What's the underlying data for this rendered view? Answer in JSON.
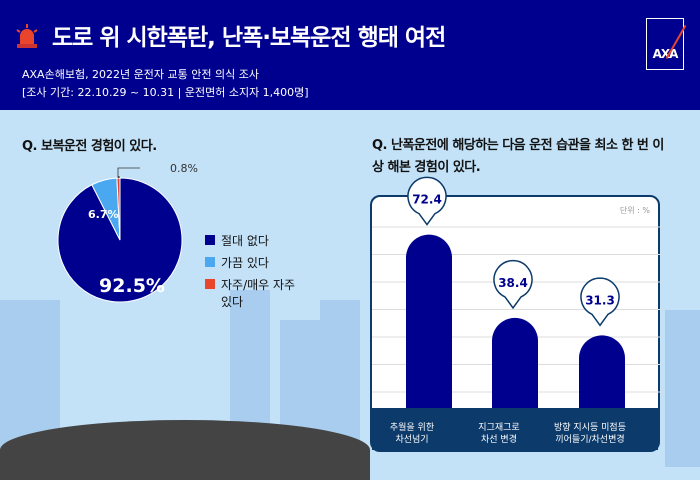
{
  "header": {
    "title": "도로 위 시한폭탄, 난폭·보복운전 행태 여전",
    "subtitle1": "AXA손해보험, 2022년 운전자 교통 안전 의식 조사",
    "subtitle2": "[조사 기간: 22.10.29 ~ 10.31 | 운전면허 소지자 1,400명]",
    "logo": "AXA"
  },
  "colors": {
    "navy": "#00008f",
    "light_blue": "#4aa8f0",
    "red": "#e8452c"
  },
  "chart_data": [
    {
      "type": "pie",
      "title": "Q. 보복운전 경험이 있다.",
      "labels": [
        "절대 없다",
        "가끔 있다",
        "자주/매우 자주 있다"
      ],
      "values": [
        92.5,
        6.7,
        0.8
      ],
      "data_labels": [
        "92.5%",
        "6.7%",
        "0.8%"
      ],
      "colors": [
        "#00008f",
        "#4aa8f0",
        "#e8452c"
      ]
    },
    {
      "type": "bar",
      "title": "Q. 난폭운전에 해당하는 다음 운전 습관을 최소 한 번 이상 해본 경험이 있다.",
      "unit": "단위 : %",
      "categories": [
        "추월을 위한\n차선넘기",
        "지그재그로\n차선 변경",
        "방향 지시등 미점등\n끼어들기/차선변경"
      ],
      "values": [
        72.4,
        38.4,
        31.3
      ],
      "data_labels": [
        "72.4",
        "38.4",
        "31.3"
      ]
    }
  ]
}
